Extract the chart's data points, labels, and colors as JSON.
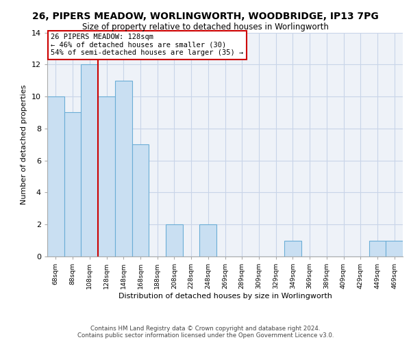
{
  "title_line1": "26, PIPERS MEADOW, WORLINGWORTH, WOODBRIDGE, IP13 7PG",
  "title_line2": "Size of property relative to detached houses in Worlingworth",
  "xlabel": "Distribution of detached houses by size in Worlingworth",
  "ylabel": "Number of detached properties",
  "bar_labels": [
    "68sqm",
    "88sqm",
    "108sqm",
    "128sqm",
    "148sqm",
    "168sqm",
    "188sqm",
    "208sqm",
    "228sqm",
    "248sqm",
    "269sqm",
    "289sqm",
    "309sqm",
    "329sqm",
    "349sqm",
    "369sqm",
    "389sqm",
    "409sqm",
    "429sqm",
    "449sqm",
    "469sqm"
  ],
  "bar_values": [
    10,
    9,
    12,
    10,
    11,
    7,
    0,
    2,
    0,
    2,
    0,
    0,
    0,
    0,
    1,
    0,
    0,
    0,
    0,
    1,
    1
  ],
  "bar_color": "#c9dff2",
  "bar_edge_color": "#6badd6",
  "subject_bar_index": 3,
  "annotation_line1": "26 PIPERS MEADOW: 128sqm",
  "annotation_line2": "← 46% of detached houses are smaller (30)",
  "annotation_line3": "54% of semi-detached houses are larger (35) →",
  "annotation_box_edge": "#cc0000",
  "vline_color": "#cc0000",
  "ylim": [
    0,
    14
  ],
  "yticks": [
    0,
    2,
    4,
    6,
    8,
    10,
    12,
    14
  ],
  "grid_color": "#c8d4e8",
  "background_color": "#eef2f8",
  "footer_line1": "Contains HM Land Registry data © Crown copyright and database right 2024.",
  "footer_line2": "Contains public sector information licensed under the Open Government Licence v3.0."
}
